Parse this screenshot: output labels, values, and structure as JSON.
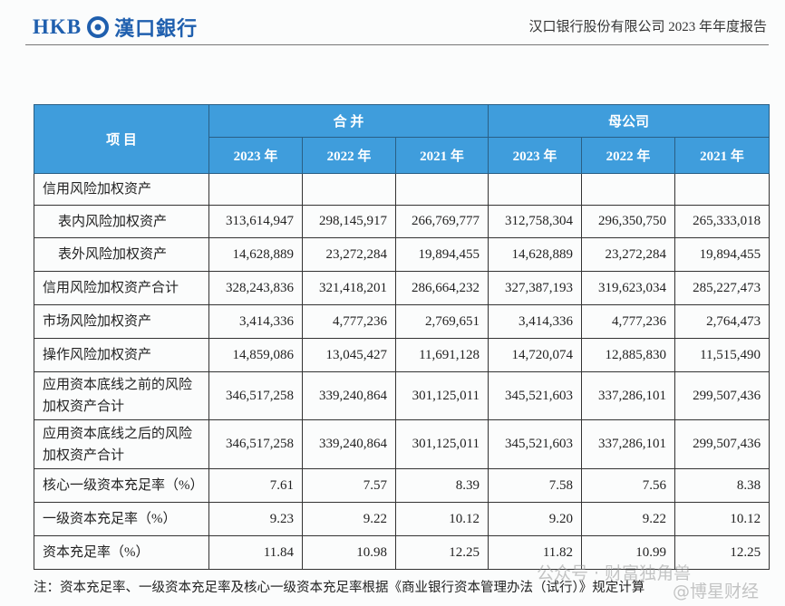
{
  "header": {
    "logo_text": "HKB",
    "bank_name": "漢口銀行",
    "report_title": "汉口银行股份有限公司 2023 年年度报告"
  },
  "table": {
    "head": {
      "item": "项 目",
      "groups": [
        "合 并",
        "母公司"
      ],
      "years": [
        "2023 年",
        "2022 年",
        "2021 年",
        "2023 年",
        "2022 年",
        "2021 年"
      ]
    },
    "rows": [
      {
        "label": [
          "信用风险加权资产"
        ],
        "cells": []
      },
      {
        "label": [
          "表内风险加权资产"
        ],
        "cells": [
          "313,614,947",
          "298,145,917",
          "266,769,777",
          "312,758,304",
          "296,350,750",
          "265,333,018"
        ]
      },
      {
        "label": [
          "表外风险加权资产"
        ],
        "cells": [
          "14,628,889",
          "23,272,284",
          "19,894,455",
          "14,628,889",
          "23,272,284",
          "19,894,455"
        ]
      },
      {
        "label": [
          "信用风险加权资产合计"
        ],
        "cells": [
          "328,243,836",
          "321,418,201",
          "286,664,232",
          "327,387,193",
          "319,623,034",
          "285,227,473"
        ]
      },
      {
        "label": [
          "市场风险加权资产"
        ],
        "cells": [
          "3,414,336",
          "4,777,236",
          "2,769,651",
          "3,414,336",
          "4,777,236",
          "2,764,473"
        ]
      },
      {
        "label": [
          "操作风险加权资产"
        ],
        "cells": [
          "14,859,086",
          "13,045,427",
          "11,691,128",
          "14,720,074",
          "12,885,830",
          "11,515,490"
        ]
      },
      {
        "label": [
          "应用资本底线之前的风险",
          "加权资产合计"
        ],
        "cells": [
          "346,517,258",
          "339,240,864",
          "301,125,011",
          "345,521,603",
          "337,286,101",
          "299,507,436"
        ]
      },
      {
        "label": [
          "应用资本底线之后的风险",
          "加权资产合计"
        ],
        "cells": [
          "346,517,258",
          "339,240,864",
          "301,125,011",
          "345,521,603",
          "337,286,101",
          "299,507,436"
        ]
      },
      {
        "label": [
          "核心一级资本充足率（%）"
        ],
        "cells": [
          "7.61",
          "7.57",
          "8.39",
          "7.58",
          "7.56",
          "8.38"
        ]
      },
      {
        "label": [
          "一级资本充足率（%）"
        ],
        "cells": [
          "9.23",
          "9.22",
          "10.12",
          "9.20",
          "9.22",
          "10.12"
        ]
      },
      {
        "label": [
          "资本充足率（%）"
        ],
        "cells": [
          "11.84",
          "10.98",
          "12.25",
          "11.82",
          "10.99",
          "12.25"
        ]
      }
    ]
  },
  "footnote": "注：资本充足率、一级资本充足率及核心一级资本充足率根据《商业银行资本管理办法（试行）》规定计算",
  "watermark": [
    "公众号 · 财富独角兽",
    "@博星财经"
  ]
}
